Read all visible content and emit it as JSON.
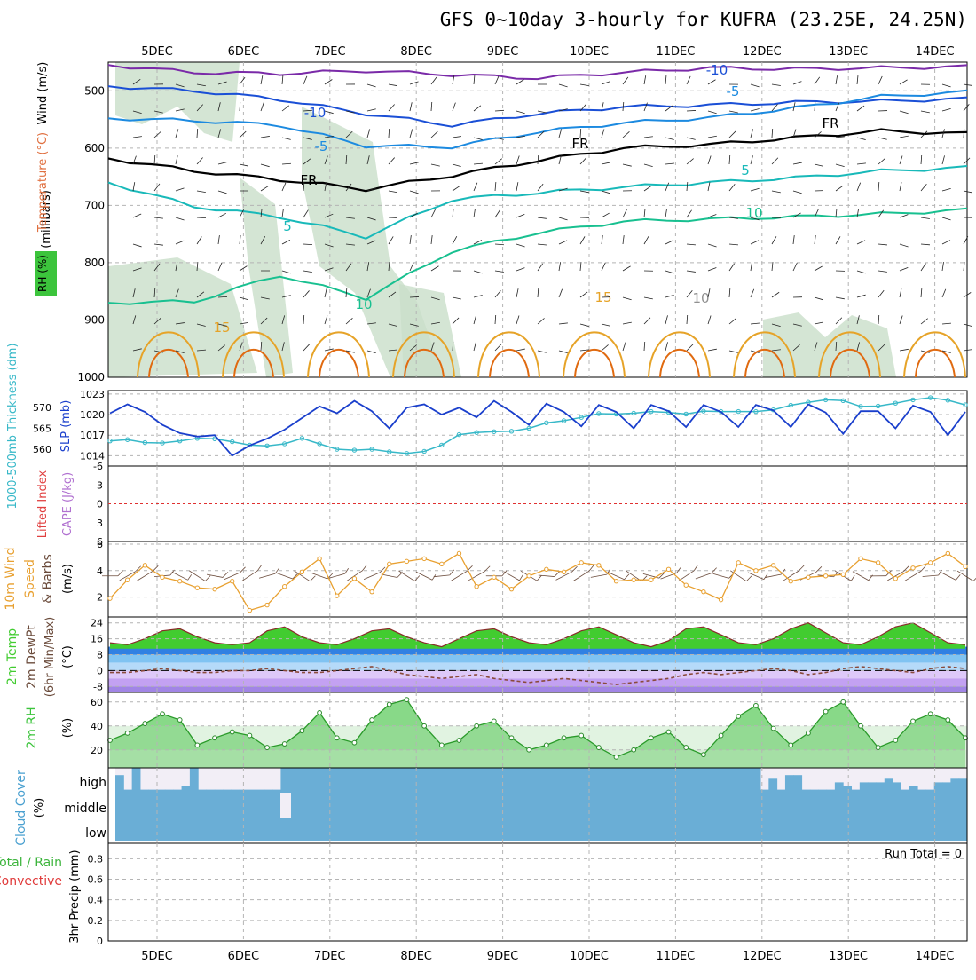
{
  "title": "GFS 0~10day 3-hourly for KUFRA (23.25E, 24.25N)",
  "run_total": "Run Total = 0",
  "colors": {
    "background": "#ffffff",
    "grid": "#b4b4b4",
    "rh_shade": "#c9dec9",
    "temp_m10": "#1a4fd6",
    "temp_m5": "#1c8ae0",
    "temp_fr": "#000000",
    "temp_5": "#18b9b9",
    "temp_10": "#18c090",
    "temp_15": "#e6a328",
    "temp_20": "#e06a10",
    "slp_line": "#1a3fcc",
    "thickness_line": "#37b8c8",
    "zero_line": "#e03030",
    "wind10m_line": "#e8a030",
    "temp_fill": "#42cc30",
    "dewpt_line": "#8a4a3a",
    "rh_fill": "#3cc43c",
    "cloud_fill": "#6aaed6",
    "cloud_gap": "#f2eef6"
  },
  "chart_data": [
    {
      "id": "upper_air",
      "type": "contour",
      "x_ticks": [
        "5DEC",
        "6DEC",
        "7DEC",
        "8DEC",
        "9DEC",
        "10DEC",
        "11DEC",
        "12DEC",
        "13DEC",
        "14DEC"
      ],
      "ylabel": "(millibars)",
      "legend_labels": [
        "Wind (m/s)",
        "Temperature (°C)",
        "RH (%)"
      ],
      "y_ticks": [
        500,
        600,
        700,
        800,
        900,
        1000
      ],
      "ylim": [
        450,
        1000
      ],
      "y_inverted": true,
      "contour_labels": [
        "-10",
        "-10",
        "-5",
        "-5",
        "FR",
        "FR",
        "FR",
        "5",
        "5",
        "10",
        "10",
        "15",
        "15",
        "10"
      ],
      "isotherms": [
        {
          "level": "-15",
          "color": "#7a2aa8",
          "pressure": [
            455,
            468,
            470,
            465,
            472,
            478,
            468,
            460,
            462,
            460,
            458
          ]
        },
        {
          "level": "-10",
          "color": "#1a4fd6",
          "pressure": [
            492,
            500,
            515,
            540,
            560,
            540,
            528,
            525,
            520,
            518,
            514
          ]
        },
        {
          "level": "-5",
          "color": "#1c8ae0",
          "pressure": [
            548,
            552,
            560,
            596,
            598,
            572,
            556,
            547,
            530,
            510,
            502
          ]
        },
        {
          "level": "FR",
          "color": "#000000",
          "pressure": [
            618,
            640,
            655,
            672,
            648,
            622,
            600,
            594,
            582,
            570,
            575
          ]
        },
        {
          "level": "5",
          "color": "#18b9b9",
          "pressure": [
            660,
            702,
            720,
            755,
            690,
            678,
            668,
            660,
            652,
            640,
            634
          ]
        },
        {
          "level": "10",
          "color": "#18c090",
          "pressure": [
            870,
            868,
            822,
            862,
            780,
            748,
            728,
            724,
            720,
            715,
            708
          ]
        }
      ]
    },
    {
      "id": "slp_thickness",
      "type": "line",
      "x_ticks": [
        "5DEC",
        "6DEC",
        "7DEC",
        "8DEC",
        "9DEC",
        "10DEC",
        "11DEC",
        "12DEC",
        "13DEC",
        "14DEC"
      ],
      "left_label": "1000-500mb Thickness (dm)",
      "left_ticks": [
        560,
        565,
        570
      ],
      "left_range": [
        556,
        574
      ],
      "right_label": "SLP (mb)",
      "right_ticks": [
        1014,
        1017,
        1020,
        1023
      ],
      "right_range": [
        1012.5,
        1023.5
      ],
      "series": [
        {
          "name": "SLP",
          "values": [
            1020.2,
            1021.5,
            1020.4,
            1018.5,
            1017.3,
            1016.8,
            1017.0,
            1014.0,
            1015.5,
            1016.5,
            1017.8,
            1019.5,
            1021.2,
            1020.2,
            1022.0,
            1020.5,
            1018.0,
            1021.0,
            1021.5,
            1020.0,
            1021.0,
            1019.6,
            1022.0,
            1020.4,
            1018.5,
            1021.6,
            1020.4,
            1018.3,
            1021.4,
            1020.4,
            1018.0,
            1021.4,
            1020.5,
            1018.2,
            1021.4,
            1020.4,
            1018.2,
            1021.4,
            1020.6,
            1018.2,
            1021.5,
            1020.3,
            1017.2,
            1020.5,
            1020.5,
            1018.0,
            1021.3,
            1020.4,
            1017.0,
            1020.4
          ]
        },
        {
          "name": "Thickness",
          "values": [
            562.0,
            562.3,
            561.6,
            561.5,
            562.0,
            562.6,
            562.5,
            561.8,
            561.0,
            560.8,
            561.3,
            562.6,
            561.3,
            560.0,
            559.8,
            560.0,
            559.4,
            559.0,
            559.5,
            561.0,
            563.5,
            564.0,
            564.2,
            564.3,
            565.0,
            566.3,
            566.8,
            567.6,
            568.5,
            568.4,
            568.6,
            569.0,
            568.8,
            568.4,
            569.1,
            569.0,
            569.0,
            569.0,
            569.4,
            570.5,
            571.2,
            571.8,
            571.6,
            570.2,
            570.3,
            571.0,
            571.8,
            572.3,
            571.7,
            570.6
          ]
        }
      ]
    },
    {
      "id": "stability",
      "type": "line",
      "x_ticks": [
        "5DEC",
        "6DEC",
        "7DEC",
        "8DEC",
        "9DEC",
        "10DEC",
        "11DEC",
        "12DEC",
        "13DEC",
        "14DEC"
      ],
      "left_label": "Lifted Index",
      "right_label": "CAPE (J/kg)",
      "left_ticks": [
        "-6",
        "-3",
        "0",
        "3",
        "6"
      ],
      "ylim": [
        -6,
        6
      ],
      "series": [
        {
          "name": "Lifted Index",
          "values": [
            0
          ]
        }
      ]
    },
    {
      "id": "wind10m",
      "type": "line",
      "x_ticks": [
        "5DEC",
        "6DEC",
        "7DEC",
        "8DEC",
        "9DEC",
        "10DEC",
        "11DEC",
        "12DEC",
        "13DEC",
        "14DEC"
      ],
      "ylabel": "10m Wind Speed & Barbs (m/s)",
      "y_ticks": [
        2,
        4,
        6
      ],
      "ylim": [
        0.5,
        6.2
      ],
      "series": [
        {
          "name": "Speed",
          "values": [
            1.9,
            3.3,
            4.4,
            3.5,
            3.2,
            2.7,
            2.6,
            3.2,
            1.0,
            1.4,
            2.8,
            3.9,
            4.9,
            2.1,
            3.4,
            2.4,
            4.5,
            4.7,
            4.9,
            4.5,
            5.3,
            2.8,
            3.5,
            2.6,
            3.6,
            4.1,
            3.9,
            4.6,
            4.4,
            3.2,
            3.3,
            3.3,
            4.1,
            2.9,
            2.4,
            1.8,
            4.6,
            4.0,
            4.4,
            3.2,
            3.5,
            3.6,
            3.7,
            4.9,
            4.6,
            3.4,
            4.2,
            4.6,
            5.3,
            4.3
          ]
        }
      ]
    },
    {
      "id": "temp2m",
      "type": "area",
      "x_ticks": [
        "5DEC",
        "6DEC",
        "7DEC",
        "8DEC",
        "9DEC",
        "10DEC",
        "11DEC",
        "12DEC",
        "13DEC",
        "14DEC"
      ],
      "ylabel": "2m Temp 2m DewPt (6hr Min/Max) (°C)",
      "y_ticks": [
        -8,
        0,
        8,
        16,
        24
      ],
      "ylim": [
        -11,
        27
      ],
      "series": [
        {
          "name": "2m Temp",
          "values": [
            14,
            13,
            16,
            20,
            21,
            17,
            14,
            13,
            14,
            20,
            22,
            17,
            14,
            13,
            16,
            20,
            21,
            17,
            14,
            12,
            16,
            20,
            21,
            17,
            14,
            13,
            16,
            20,
            22,
            18,
            14,
            12,
            15,
            21,
            22,
            18,
            14,
            13,
            16,
            21,
            24,
            19,
            14,
            13,
            17,
            22,
            24,
            19,
            14,
            13
          ]
        },
        {
          "name": "2m DewPt",
          "values": [
            -1,
            -1,
            0,
            1,
            0,
            -1,
            -1,
            0,
            0,
            1,
            0,
            -1,
            -1,
            0,
            1,
            2,
            0,
            -2,
            -3,
            -4,
            -3,
            -2,
            -4,
            -5,
            -6,
            -5,
            -4,
            -5,
            -6,
            -7,
            -6,
            -5,
            -4,
            -2,
            -1,
            -2,
            -1,
            0,
            1,
            0,
            -2,
            -1,
            1,
            2,
            1,
            0,
            -1,
            1,
            2,
            1
          ]
        }
      ]
    },
    {
      "id": "rh2m",
      "type": "area",
      "x_ticks": [
        "5DEC",
        "6DEC",
        "7DEC",
        "8DEC",
        "9DEC",
        "10DEC",
        "11DEC",
        "12DEC",
        "13DEC",
        "14DEC"
      ],
      "ylabel": "2m RH (%)",
      "y_ticks": [
        20,
        40,
        60
      ],
      "ylim": [
        5,
        68
      ],
      "series": [
        {
          "name": "2m RH",
          "values": [
            28,
            34,
            42,
            50,
            45,
            24,
            30,
            35,
            32,
            22,
            25,
            36,
            51,
            30,
            26,
            45,
            58,
            62,
            40,
            24,
            28,
            40,
            44,
            30,
            20,
            24,
            30,
            32,
            22,
            14,
            20,
            30,
            35,
            22,
            16,
            32,
            48,
            57,
            38,
            24,
            34,
            52,
            60,
            40,
            22,
            28,
            44,
            50,
            45,
            30
          ]
        }
      ]
    },
    {
      "id": "cloud_cover",
      "type": "area",
      "x_ticks": [
        "5DEC",
        "6DEC",
        "7DEC",
        "8DEC",
        "9DEC",
        "10DEC",
        "11DEC",
        "12DEC",
        "13DEC",
        "14DEC"
      ],
      "ylabel": "Cloud Cover (%)",
      "level_labels": [
        "high",
        "middle",
        "low"
      ],
      "series": [
        {
          "name": "cover_fraction",
          "values": [
            0.9,
            0.7,
            1.0,
            0.7,
            0.7,
            0.7,
            0.7,
            0.7,
            0.75,
            1.0,
            0.7,
            0.7,
            0.7,
            0.7,
            0.7,
            0.7,
            0.7,
            0.7,
            0.7,
            0.7,
            1.0,
            1.0,
            1.0,
            1.0,
            1.0,
            1.0,
            1.0,
            1.0,
            1.0,
            1.0,
            1.0,
            1.0,
            1.0,
            1.0,
            1.0,
            1.0,
            1.0,
            1.0,
            1.0,
            1.0,
            1.0,
            1.0,
            1.0,
            1.0,
            1.0,
            1.0,
            1.0,
            1.0,
            1.0,
            1.0,
            1.0,
            1.0,
            1.0,
            1.0,
            1.0,
            1.0,
            1.0,
            1.0,
            1.0,
            1.0,
            1.0,
            1.0,
            1.0,
            1.0,
            1.0,
            1.0,
            1.0,
            1.0,
            1.0,
            1.0,
            1.0,
            1.0,
            1.0,
            1.0,
            1.0,
            1.0,
            1.0,
            1.0,
            0.7,
            0.85,
            0.7,
            0.9,
            0.9,
            0.7,
            0.7,
            0.7,
            0.7,
            0.8,
            0.75,
            0.7,
            0.8,
            0.8,
            0.8,
            0.85,
            0.8,
            0.7,
            0.75,
            0.7,
            0.7,
            0.8,
            0.8,
            0.85,
            0.85
          ]
        }
      ]
    },
    {
      "id": "precip",
      "type": "bar",
      "x_ticks": [
        "5DEC",
        "6DEC",
        "7DEC",
        "8DEC",
        "9DEC",
        "10DEC",
        "11DEC",
        "12DEC",
        "13DEC",
        "14DEC"
      ],
      "ylabel": "3hr Precip (mm)",
      "legend_labels": [
        "Total / Rain",
        "Convective"
      ],
      "y_ticks": [
        "0",
        "0.2",
        "0.4",
        "0.6",
        "0.8"
      ],
      "ylim": [
        0,
        0.95
      ],
      "series": [
        {
          "name": "Total",
          "values": [
            0
          ]
        }
      ]
    }
  ]
}
